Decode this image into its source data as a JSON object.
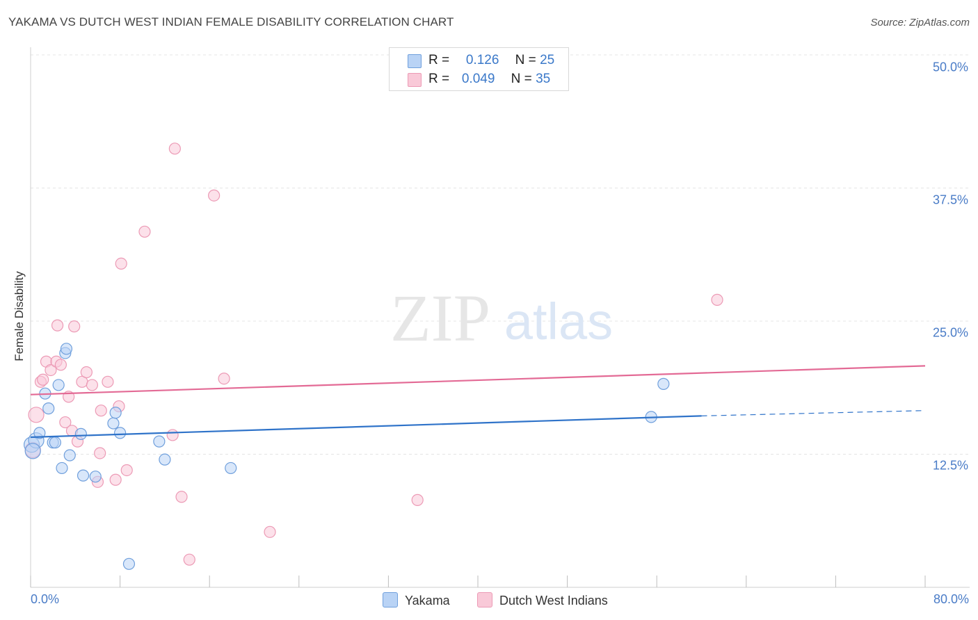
{
  "title": "YAKAMA VS DUTCH WEST INDIAN FEMALE DISABILITY CORRELATION CHART",
  "source": "Source: ZipAtlas.com",
  "watermark": {
    "zip": "ZIP",
    "atlas": "atlas"
  },
  "legend": {
    "r_label": "R =",
    "n_label": "N =",
    "series": [
      {
        "name": "Yakama",
        "r": "0.126",
        "n": "25"
      },
      {
        "name": "Dutch West Indians",
        "r": "0.049",
        "n": "35"
      }
    ]
  },
  "colors": {
    "yakama_fill": "#b9d3f5",
    "yakama_stroke": "#6f9fdc",
    "yakama_line": "#2f73c9",
    "dutch_fill": "#f9c9d8",
    "dutch_stroke": "#ec9ab5",
    "dutch_line": "#e36a95",
    "tick_text": "#4a7cc7",
    "grid": "#e4e4e4"
  },
  "chart_data": {
    "type": "scatter",
    "title": "YAKAMA VS DUTCH WEST INDIAN FEMALE DISABILITY CORRELATION CHART",
    "xlabel": "",
    "ylabel": "Female Disability",
    "xlim": [
      0,
      80
    ],
    "ylim": [
      0,
      50
    ],
    "x_tick_labels": [
      "0.0%",
      "80.0%"
    ],
    "y_ticks": [
      12.5,
      25.0,
      37.5,
      50.0
    ],
    "y_tick_labels": [
      "12.5%",
      "25.0%",
      "37.5%",
      "50.0%"
    ],
    "grid": true,
    "legend_position": "top-center",
    "series": [
      {
        "name": "Yakama",
        "points": [
          [
            0.1,
            13.4
          ],
          [
            0.5,
            13.8
          ],
          [
            0.8,
            14.5
          ],
          [
            1.3,
            18.2
          ],
          [
            1.6,
            16.8
          ],
          [
            2.0,
            13.6
          ],
          [
            2.2,
            13.6
          ],
          [
            2.5,
            19.0
          ],
          [
            2.8,
            11.2
          ],
          [
            3.1,
            22.0
          ],
          [
            3.2,
            22.4
          ],
          [
            3.5,
            12.4
          ],
          [
            4.5,
            14.4
          ],
          [
            4.7,
            10.5
          ],
          [
            5.8,
            10.4
          ],
          [
            7.4,
            15.4
          ],
          [
            7.6,
            16.4
          ],
          [
            8.0,
            14.5
          ],
          [
            8.8,
            2.2
          ],
          [
            11.5,
            13.7
          ],
          [
            12.0,
            12.0
          ],
          [
            17.9,
            11.2
          ],
          [
            55.5,
            16.0
          ],
          [
            56.6,
            19.1
          ],
          [
            0.2,
            12.8
          ]
        ],
        "trend": {
          "x": [
            0,
            60
          ],
          "y": [
            14.1,
            16.1
          ],
          "dashed_extension": {
            "x": [
              60,
              80
            ],
            "y": [
              16.1,
              16.6
            ]
          }
        }
      },
      {
        "name": "Dutch West Indians",
        "points": [
          [
            0.2,
            12.9
          ],
          [
            0.5,
            16.2
          ],
          [
            0.9,
            19.3
          ],
          [
            1.1,
            19.5
          ],
          [
            1.4,
            21.2
          ],
          [
            1.8,
            20.4
          ],
          [
            2.3,
            21.2
          ],
          [
            2.4,
            24.6
          ],
          [
            2.7,
            20.9
          ],
          [
            3.1,
            15.5
          ],
          [
            3.4,
            17.9
          ],
          [
            3.7,
            14.7
          ],
          [
            3.9,
            24.5
          ],
          [
            4.2,
            13.7
          ],
          [
            4.6,
            19.3
          ],
          [
            5.0,
            20.2
          ],
          [
            5.5,
            19.0
          ],
          [
            6.0,
            9.9
          ],
          [
            6.2,
            12.6
          ],
          [
            6.3,
            16.6
          ],
          [
            6.9,
            19.3
          ],
          [
            7.6,
            10.1
          ],
          [
            7.9,
            17.0
          ],
          [
            8.1,
            30.4
          ],
          [
            8.6,
            11.0
          ],
          [
            10.2,
            33.4
          ],
          [
            12.7,
            14.3
          ],
          [
            12.9,
            41.2
          ],
          [
            13.5,
            8.5
          ],
          [
            14.2,
            2.6
          ],
          [
            16.4,
            36.8
          ],
          [
            17.3,
            19.6
          ],
          [
            21.4,
            5.2
          ],
          [
            34.6,
            8.2
          ],
          [
            61.4,
            27.0
          ]
        ],
        "trend": {
          "x": [
            0,
            80
          ],
          "y": [
            18.1,
            20.8
          ]
        }
      }
    ]
  }
}
